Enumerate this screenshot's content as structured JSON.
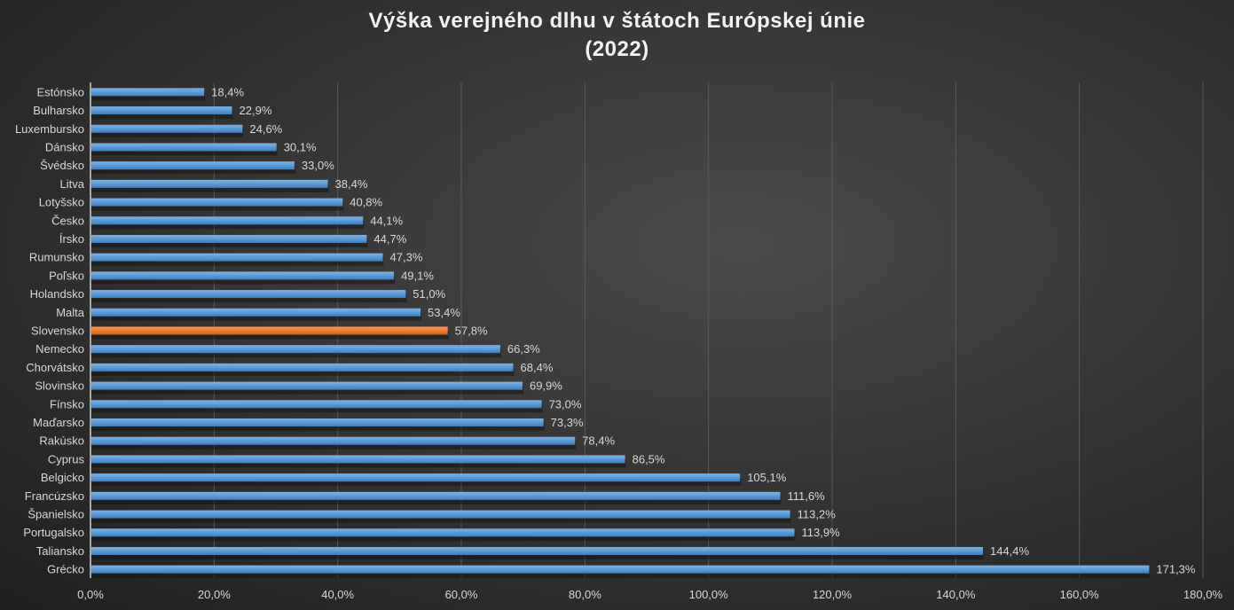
{
  "chart_data": {
    "type": "bar",
    "orientation": "horizontal",
    "title_line1": "Výška verejného dlhu v štátoch Európskej únie",
    "title_line2": "(2022)",
    "xlabel": "",
    "ylabel": "",
    "xlim": [
      0,
      180
    ],
    "xticks": [
      0,
      20,
      40,
      60,
      80,
      100,
      120,
      140,
      160,
      180
    ],
    "xtick_labels": [
      "0,0%",
      "20,0%",
      "40,0%",
      "60,0%",
      "80,0%",
      "100,0%",
      "120,0%",
      "140,0%",
      "160,0%",
      "180,0%"
    ],
    "grid": true,
    "categories": [
      "Estónsko",
      "Bulharsko",
      "Luxembursko",
      "Dánsko",
      "Švédsko",
      "Litva",
      "Lotyšsko",
      "Česko",
      "Írsko",
      "Rumunsko",
      "Poľsko",
      "Holandsko",
      "Malta",
      "Slovensko",
      "Nemecko",
      "Chorvátsko",
      "Slovinsko",
      "Fínsko",
      "Maďarsko",
      "Rakúsko",
      "Cyprus",
      "Belgicko",
      "Francúzsko",
      "Španielsko",
      "Portugalsko",
      "Taliansko",
      "Grécko"
    ],
    "values": [
      18.4,
      22.9,
      24.6,
      30.1,
      33.0,
      38.4,
      40.8,
      44.1,
      44.7,
      47.3,
      49.1,
      51.0,
      53.4,
      57.8,
      66.3,
      68.4,
      69.9,
      73.0,
      73.3,
      78.4,
      86.5,
      105.1,
      111.6,
      113.2,
      113.9,
      144.4,
      171.3
    ],
    "value_labels": [
      "18,4%",
      "22,9%",
      "24,6%",
      "30,1%",
      "33,0%",
      "38,4%",
      "40,8%",
      "44,1%",
      "44,7%",
      "47,3%",
      "49,1%",
      "51,0%",
      "53,4%",
      "57,8%",
      "66,3%",
      "68,4%",
      "69,9%",
      "73,0%",
      "73,3%",
      "78,4%",
      "86,5%",
      "105,1%",
      "111,6%",
      "113,2%",
      "113,9%",
      "144,4%",
      "171,3%"
    ],
    "highlight": "Slovensko",
    "colors": {
      "bar": "#5b9bd5",
      "highlight": "#ed7d31"
    }
  }
}
